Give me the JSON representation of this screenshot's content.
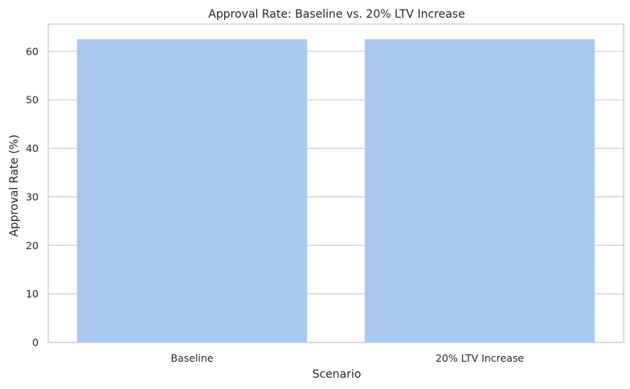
{
  "chart_data": {
    "type": "bar",
    "title": "Approval Rate: Baseline vs. 20% LTV Increase",
    "xlabel": "Scenario",
    "ylabel": "Approval Rate (%)",
    "categories": [
      "Baseline",
      "20% LTV Increase"
    ],
    "values": [
      62.5,
      62.5
    ],
    "ylim": [
      0,
      65.6
    ],
    "yticks": [
      0,
      10,
      20,
      30,
      40,
      50,
      60
    ],
    "grid": true,
    "bar_color": "#abc9ee",
    "grid_color": "#cfcfcf",
    "axis_color": "#cccccc"
  }
}
